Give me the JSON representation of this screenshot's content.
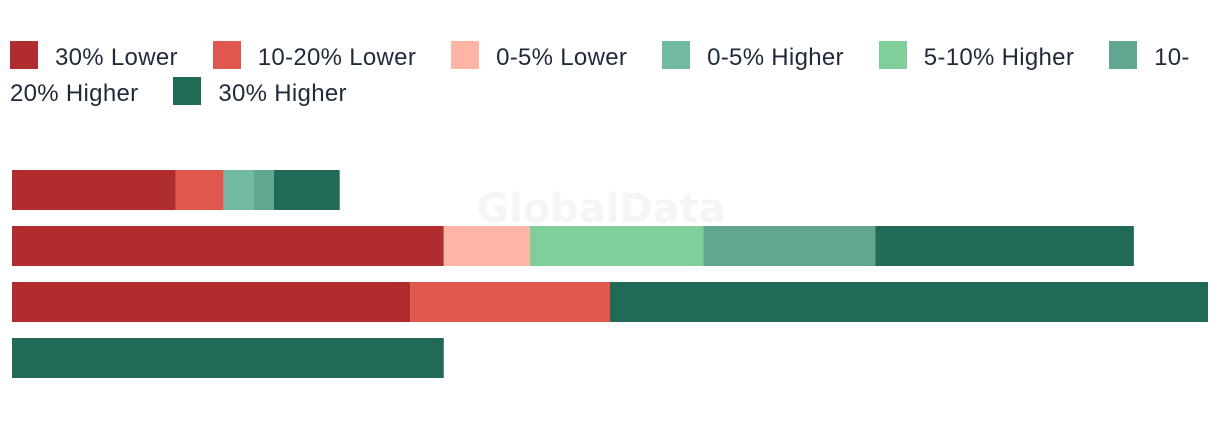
{
  "chart_data": {
    "type": "bar",
    "orientation": "horizontal",
    "stacked": true,
    "title": "",
    "xlabel": "",
    "ylabel": "",
    "categories": [
      "",
      "",
      "",
      ""
    ],
    "xlim": [
      0,
      100
    ],
    "grid": false,
    "legend_position": "top",
    "watermark": "GlobalData",
    "series": [
      {
        "name": "30% Lower",
        "color": "#b02c2f",
        "values": [
          13.7,
          36.1,
          33.3,
          0
        ]
      },
      {
        "name": "10-20% Lower",
        "color": "#e0574e",
        "values": [
          4.0,
          0,
          16.7,
          0
        ]
      },
      {
        "name": "0-5% Lower",
        "color": "#fdb6a5",
        "values": [
          0,
          7.2,
          0,
          0
        ]
      },
      {
        "name": "0-5% Higher",
        "color": "#72b9a1",
        "values": [
          2.5,
          0,
          0,
          0
        ]
      },
      {
        "name": "5-10% Higher",
        "color": "#80ce9a",
        "values": [
          0,
          14.5,
          0,
          0
        ]
      },
      {
        "name": "10-20% Higher",
        "color": "#60a690",
        "values": [
          1.7,
          14.4,
          0,
          0
        ]
      },
      {
        "name": "30% Higher",
        "color": "#206a57",
        "values": [
          5.5,
          21.6,
          50.0,
          36.1
        ]
      }
    ]
  }
}
